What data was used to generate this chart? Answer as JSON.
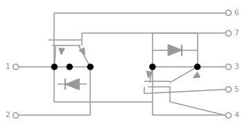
{
  "bg_color": "#ffffff",
  "lc": "#999999",
  "dc": "#000000",
  "lw": 1.1,
  "fig_width": 3.59,
  "fig_height": 1.93,
  "dpi": 100
}
